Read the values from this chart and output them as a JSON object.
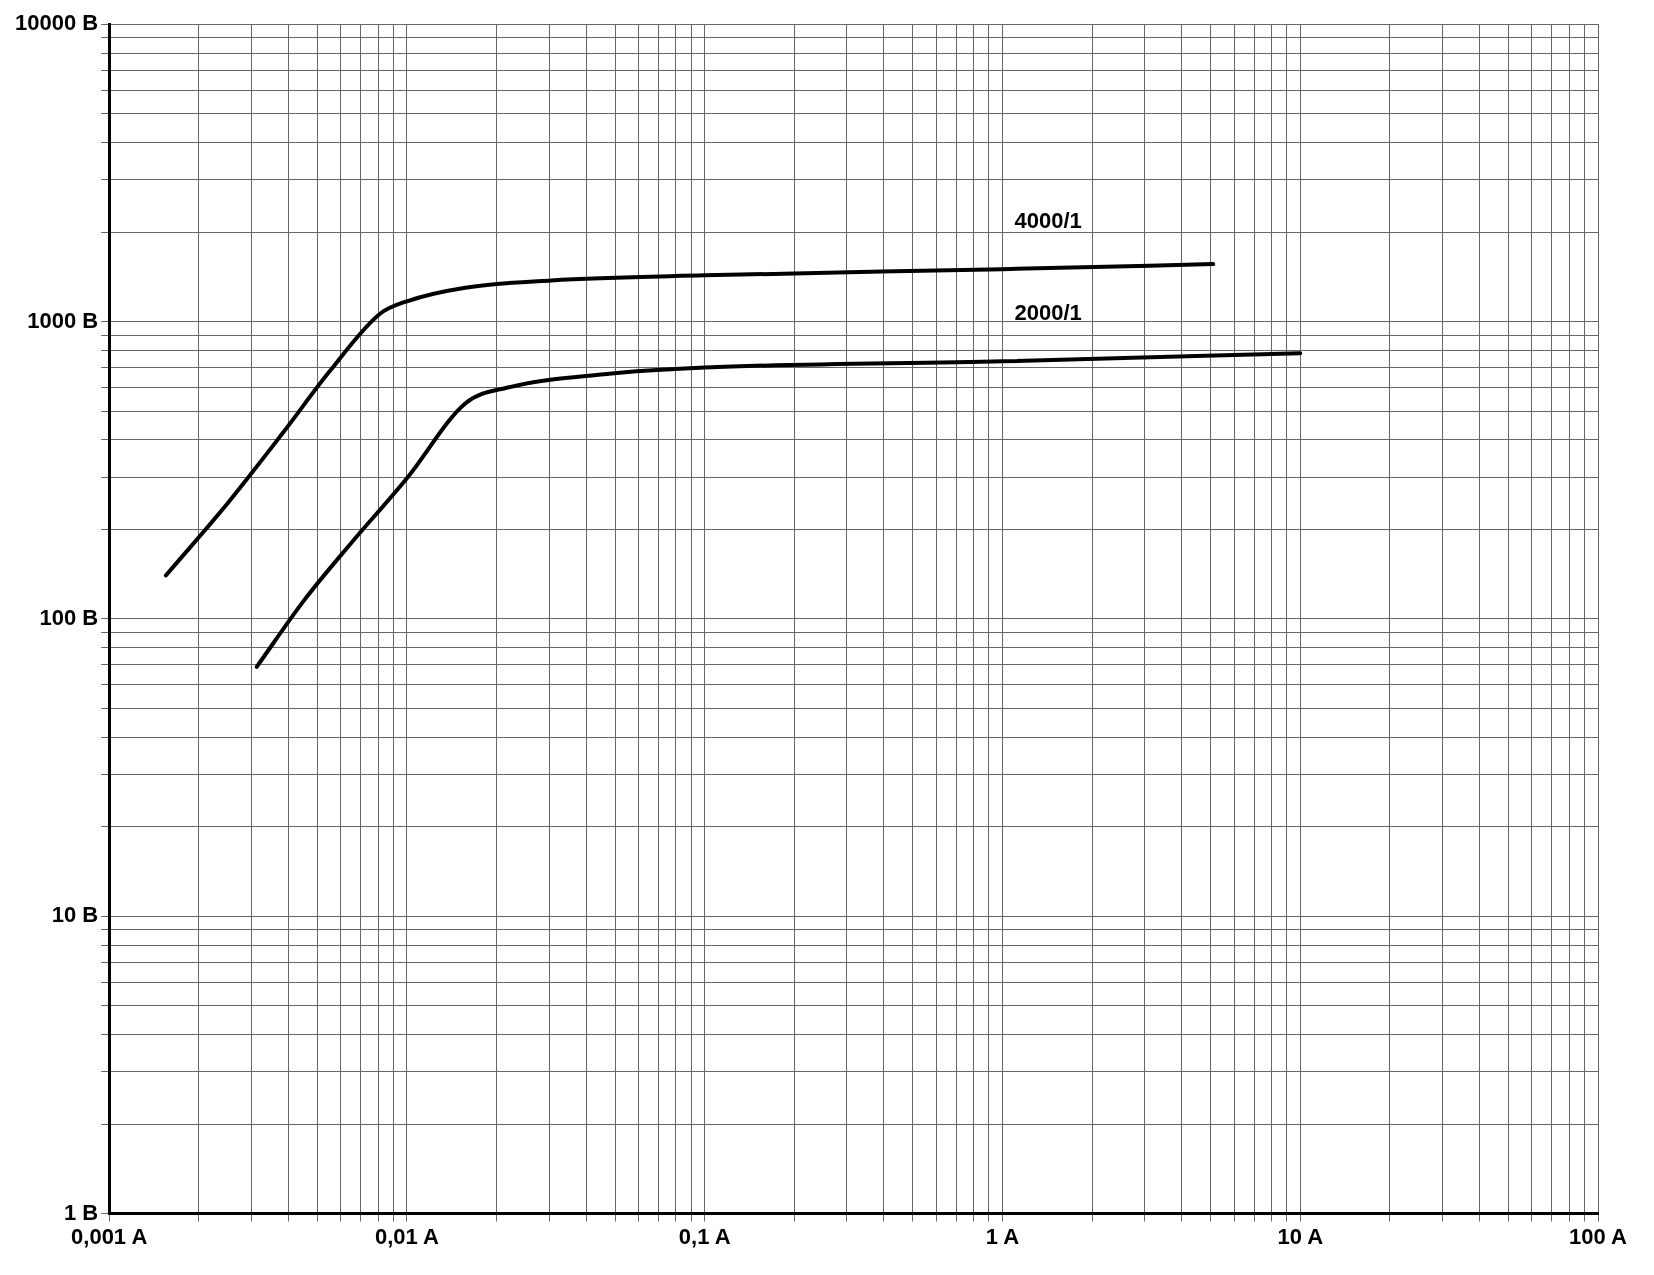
{
  "chart_data": {
    "type": "line",
    "log": "xy",
    "grid": true,
    "legend": false,
    "marker": "none",
    "line_style": "solid",
    "xlim": [
      0.001,
      100
    ],
    "ylim": [
      1,
      10000
    ],
    "xticks": [
      {
        "value": 0.001,
        "label": "0,001 A"
      },
      {
        "value": 0.002,
        "label": null
      },
      {
        "value": 0.003,
        "label": null
      },
      {
        "value": 0.004,
        "label": null
      },
      {
        "value": 0.005,
        "label": null
      },
      {
        "value": 0.006,
        "label": null
      },
      {
        "value": 0.007,
        "label": null
      },
      {
        "value": 0.008,
        "label": null
      },
      {
        "value": 0.009,
        "label": null
      },
      {
        "value": 0.01,
        "label": "0,01 A"
      },
      {
        "value": 0.02,
        "label": null
      },
      {
        "value": 0.03,
        "label": null
      },
      {
        "value": 0.04,
        "label": null
      },
      {
        "value": 0.05,
        "label": null
      },
      {
        "value": 0.06,
        "label": null
      },
      {
        "value": 0.07,
        "label": null
      },
      {
        "value": 0.08,
        "label": null
      },
      {
        "value": 0.09,
        "label": null
      },
      {
        "value": 0.1,
        "label": "0,1 A"
      },
      {
        "value": 0.2,
        "label": null
      },
      {
        "value": 0.3,
        "label": null
      },
      {
        "value": 0.4,
        "label": null
      },
      {
        "value": 0.5,
        "label": null
      },
      {
        "value": 0.6,
        "label": null
      },
      {
        "value": 0.7,
        "label": null
      },
      {
        "value": 0.8,
        "label": null
      },
      {
        "value": 0.9,
        "label": null
      },
      {
        "value": 1,
        "label": "1 A"
      },
      {
        "value": 2,
        "label": null
      },
      {
        "value": 3,
        "label": null
      },
      {
        "value": 4,
        "label": null
      },
      {
        "value": 5,
        "label": null
      },
      {
        "value": 6,
        "label": null
      },
      {
        "value": 7,
        "label": null
      },
      {
        "value": 8,
        "label": null
      },
      {
        "value": 9,
        "label": null
      },
      {
        "value": 10,
        "label": "10 A"
      },
      {
        "value": 20,
        "label": null
      },
      {
        "value": 30,
        "label": null
      },
      {
        "value": 40,
        "label": null
      },
      {
        "value": 50,
        "label": null
      },
      {
        "value": 60,
        "label": null
      },
      {
        "value": 70,
        "label": null
      },
      {
        "value": 80,
        "label": null
      },
      {
        "value": 90,
        "label": null
      },
      {
        "value": 100,
        "label": "100 A"
      }
    ],
    "yticks": [
      {
        "value": 1,
        "label": "1 В"
      },
      {
        "value": 2,
        "label": null
      },
      {
        "value": 3,
        "label": null
      },
      {
        "value": 4,
        "label": null
      },
      {
        "value": 5,
        "label": null
      },
      {
        "value": 6,
        "label": null
      },
      {
        "value": 7,
        "label": null
      },
      {
        "value": 8,
        "label": null
      },
      {
        "value": 9,
        "label": null
      },
      {
        "value": 10,
        "label": "10 В"
      },
      {
        "value": 20,
        "label": null
      },
      {
        "value": 30,
        "label": null
      },
      {
        "value": 40,
        "label": null
      },
      {
        "value": 50,
        "label": null
      },
      {
        "value": 60,
        "label": null
      },
      {
        "value": 70,
        "label": null
      },
      {
        "value": 80,
        "label": null
      },
      {
        "value": 90,
        "label": null
      },
      {
        "value": 100,
        "label": "100 В"
      },
      {
        "value": 200,
        "label": null
      },
      {
        "value": 300,
        "label": null
      },
      {
        "value": 400,
        "label": null
      },
      {
        "value": 500,
        "label": null
      },
      {
        "value": 600,
        "label": null
      },
      {
        "value": 700,
        "label": null
      },
      {
        "value": 800,
        "label": null
      },
      {
        "value": 900,
        "label": null
      },
      {
        "value": 1000,
        "label": "1000 В"
      },
      {
        "value": 2000,
        "label": null
      },
      {
        "value": 3000,
        "label": null
      },
      {
        "value": 4000,
        "label": null
      },
      {
        "value": 5000,
        "label": null
      },
      {
        "value": 6000,
        "label": null
      },
      {
        "value": 7000,
        "label": null
      },
      {
        "value": 8000,
        "label": null
      },
      {
        "value": 9000,
        "label": null
      },
      {
        "value": 10000,
        "label": "10000 В"
      }
    ],
    "series": [
      {
        "name": "4000/1",
        "color": "#000000",
        "x": [
          0.00155,
          0.0025,
          0.00385,
          0.0055,
          0.0081,
          0.01,
          0.0157,
          0.0305,
          0.1,
          1,
          5.1
        ],
        "values": [
          140,
          245,
          425,
          680,
          1060,
          1170,
          1300,
          1375,
          1430,
          1500,
          1560
        ]
      },
      {
        "name": "2000/1",
        "color": "#000000",
        "x": [
          0.00313,
          0.0045,
          0.0065,
          0.01,
          0.0157,
          0.0218,
          0.046,
          0.1,
          1,
          10
        ],
        "values": [
          69,
          115,
          180,
          297,
          530,
          600,
          665,
          700,
          735,
          783
        ]
      }
    ]
  }
}
